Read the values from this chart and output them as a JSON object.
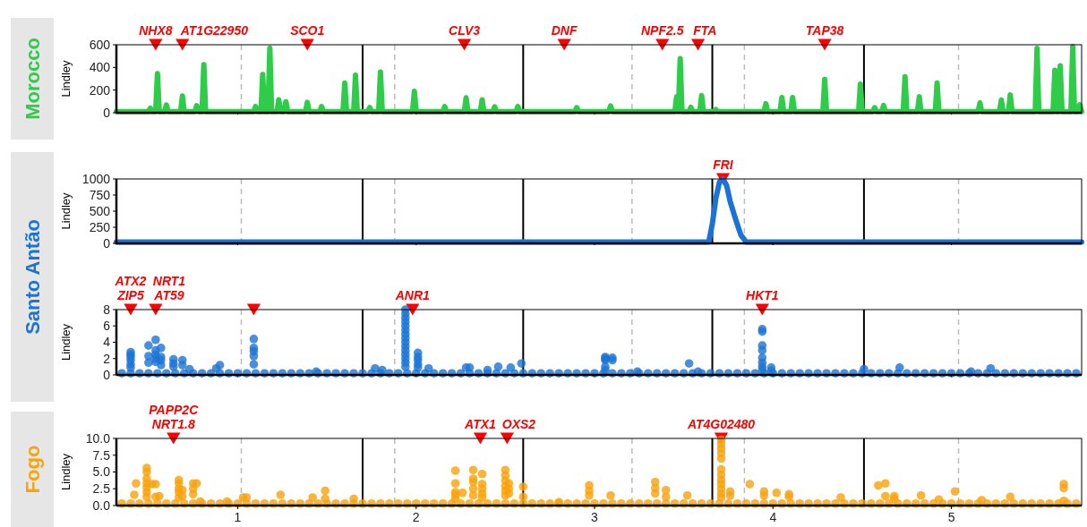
{
  "chart_data": [
    {
      "type": "line",
      "title": "Morocco",
      "ylabel": "Lindley",
      "xlim": [
        0.32,
        5.73
      ],
      "xticks": [
        1,
        2,
        3,
        4,
        5
      ],
      "ylim": [
        0,
        600
      ],
      "yticks": [
        0,
        200,
        400,
        600
      ],
      "tick_labels": "y",
      "series": [
        {
          "type": "scatter",
          "marker": "triangle",
          "color": "#ff0000",
          "x": [
            0.54,
            0.69,
            1.39,
            2.27,
            2.83,
            3.38,
            3.58,
            4.29
          ],
          "values": [
            600,
            600,
            600,
            600,
            600,
            600,
            600,
            600
          ],
          "value_labels": [
            "NHX8",
            "AT1G22950",
            "SCO1",
            "CLV3",
            "DNF",
            "NPF2.5",
            "FTA",
            "TAP38"
          ]
        },
        {
          "color": "#2ecc48",
          "x": [
            0.32,
            0.5,
            0.51,
            0.52,
            0.54,
            0.55,
            0.56,
            0.59,
            0.6,
            0.61,
            0.68,
            0.69,
            0.7,
            0.76,
            0.77,
            0.78,
            0.8,
            0.81,
            0.82,
            1.09,
            1.1,
            1.11,
            1.13,
            1.14,
            1.15,
            1.17,
            1.18,
            1.19,
            1.22,
            1.23,
            1.24,
            1.26,
            1.27,
            1.28,
            1.38,
            1.39,
            1.4,
            1.46,
            1.47,
            1.48,
            1.59,
            1.6,
            1.61,
            1.65,
            1.66,
            1.67,
            1.73,
            1.74,
            1.75,
            1.79,
            1.8,
            1.81,
            1.98,
            1.99,
            2.0,
            2.15,
            2.16,
            2.17,
            2.27,
            2.28,
            2.29,
            2.36,
            2.37,
            2.38,
            2.43,
            2.44,
            2.45,
            2.56,
            2.57,
            2.58,
            2.89,
            2.9,
            2.91,
            3.08,
            3.09,
            3.1,
            3.45,
            3.46,
            3.47,
            3.47,
            3.48,
            3.49,
            3.53,
            3.54,
            3.55,
            3.59,
            3.6,
            3.61,
            3.67,
            3.68,
            3.69,
            3.95,
            3.96,
            3.97,
            4.04,
            4.05,
            4.06,
            4.1,
            4.11,
            4.12,
            4.28,
            4.29,
            4.3,
            4.48,
            4.49,
            4.5,
            4.56,
            4.57,
            4.58,
            4.61,
            4.62,
            4.63,
            4.73,
            4.74,
            4.75,
            4.81,
            4.82,
            4.83,
            4.91,
            4.92,
            4.93,
            5.15,
            5.16,
            5.17,
            5.27,
            5.28,
            5.29,
            5.32,
            5.33,
            5.34,
            5.47,
            5.48,
            5.49,
            5.57,
            5.58,
            5.59,
            5.6,
            5.61,
            5.62,
            5.67,
            5.68,
            5.69,
            5.71,
            5.72,
            5.73
          ],
          "values": [
            10,
            10,
            40,
            10,
            10,
            345,
            10,
            10,
            68,
            10,
            10,
            148,
            10,
            10,
            62,
            10,
            10,
            425,
            10,
            10,
            55,
            10,
            10,
            338,
            10,
            10,
            570,
            10,
            10,
            114,
            10,
            10,
            98,
            10,
            10,
            92,
            10,
            10,
            55,
            10,
            10,
            262,
            10,
            10,
            332,
            10,
            10,
            46,
            10,
            10,
            360,
            10,
            10,
            190,
            10,
            10,
            55,
            10,
            10,
            132,
            10,
            10,
            114,
            10,
            10,
            52,
            10,
            10,
            55,
            10,
            10,
            45,
            10,
            10,
            61,
            10,
            10,
            141,
            10,
            10,
            478,
            10,
            10,
            48,
            10,
            10,
            151,
            10,
            10,
            29,
            10,
            10,
            80,
            10,
            10,
            135,
            10,
            10,
            135,
            10,
            10,
            295,
            10,
            10,
            253,
            10,
            10,
            45,
            10,
            10,
            64,
            10,
            10,
            318,
            10,
            10,
            141,
            10,
            10,
            263,
            10,
            10,
            87,
            10,
            10,
            112,
            10,
            10,
            157,
            10,
            10,
            568,
            10,
            10,
            375,
            10,
            10,
            414,
            10,
            10,
            584,
            10,
            10,
            70,
            10
          ]
        }
      ],
      "ref_lines": [
        {
          "axis": "x",
          "value": 1.7,
          "color": "#000000"
        },
        {
          "axis": "x",
          "value": 2.6,
          "color": "#000000"
        },
        {
          "axis": "x",
          "value": 3.66,
          "color": "#000000"
        },
        {
          "axis": "x",
          "value": 4.51,
          "color": "#000000"
        },
        {
          "axis": "x",
          "value": 1.02,
          "color": "#bbbbbb",
          "line_style": "dashed"
        },
        {
          "axis": "x",
          "value": 1.88,
          "color": "#bbbbbb",
          "line_style": "dashed"
        },
        {
          "axis": "x",
          "value": 3.21,
          "color": "#bbbbbb",
          "line_style": "dashed"
        },
        {
          "axis": "x",
          "value": 3.84,
          "color": "#bbbbbb",
          "line_style": "dashed"
        },
        {
          "axis": "x",
          "value": 5.04,
          "color": "#bbbbbb",
          "line_style": "dashed"
        }
      ],
      "grid": false
    },
    {
      "type": "line",
      "title": "Santo Antão",
      "ylabel": "Lindley",
      "xlim": [
        0.32,
        5.73
      ],
      "xticks": [
        1,
        2,
        3,
        4,
        5
      ],
      "ylim": [
        0,
        1000
      ],
      "yticks": [
        0,
        250,
        500,
        750,
        1000
      ],
      "tick_labels": "y",
      "series": [
        {
          "type": "scatter",
          "marker": "triangle",
          "color": "#ff0000",
          "x": [
            3.72
          ],
          "values": [
            1000
          ],
          "value_labels": [
            "FRI"
          ]
        },
        {
          "color": "#1a74d6",
          "x": [
            0.32,
            3.64,
            3.66,
            3.68,
            3.7,
            3.72,
            3.74,
            3.76,
            3.79,
            3.82,
            3.85,
            5.73
          ],
          "values": [
            20,
            20,
            300,
            700,
            950,
            1000,
            900,
            650,
            380,
            130,
            20,
            20
          ]
        }
      ],
      "ref_lines": [
        {
          "axis": "x",
          "value": 1.7,
          "color": "#000000"
        },
        {
          "axis": "x",
          "value": 2.6,
          "color": "#000000"
        },
        {
          "axis": "x",
          "value": 3.66,
          "color": "#000000"
        },
        {
          "axis": "x",
          "value": 4.51,
          "color": "#000000"
        },
        {
          "axis": "x",
          "value": 1.02,
          "color": "#bbbbbb",
          "line_style": "dashed"
        },
        {
          "axis": "x",
          "value": 1.88,
          "color": "#bbbbbb",
          "line_style": "dashed"
        },
        {
          "axis": "x",
          "value": 3.21,
          "color": "#bbbbbb",
          "line_style": "dashed"
        },
        {
          "axis": "x",
          "value": 3.84,
          "color": "#bbbbbb",
          "line_style": "dashed"
        },
        {
          "axis": "x",
          "value": 5.04,
          "color": "#bbbbbb",
          "line_style": "dashed"
        }
      ],
      "grid": false
    },
    {
      "type": "scatter",
      "ylabel": "Lindley",
      "xlim": [
        0.32,
        5.73
      ],
      "xticks": [
        1,
        2,
        3,
        4,
        5
      ],
      "ylim": [
        0,
        8
      ],
      "yticks": [
        0,
        2,
        4,
        6,
        8
      ],
      "tick_labels": "y",
      "marker": "circle",
      "series": [
        {
          "type": "scatter",
          "marker": "triangle",
          "color": "#ff0000",
          "x": [
            0.4,
            0.54,
            1.09,
            1.98,
            3.94
          ],
          "values": [
            8,
            8,
            8,
            8,
            8
          ],
          "value_labels": [
            "ATX2\nZIP5",
            "NRT1\nAT59",
            null,
            "ANR1",
            "HKT1"
          ]
        },
        {
          "color": "#1a74d6",
          "x": [
            0.35,
            0.4,
            0.45,
            0.5,
            0.55,
            0.6,
            0.65,
            0.7,
            0.75,
            0.8,
            0.85,
            0.9,
            0.95,
            1.0,
            1.05,
            1.1,
            1.15,
            1.2,
            1.25,
            1.3,
            1.35,
            1.4,
            1.45,
            1.5,
            1.55,
            1.6,
            1.65,
            1.7,
            1.75,
            1.8,
            1.85,
            1.9,
            1.95,
            2.0,
            2.05,
            2.1,
            2.15,
            2.2,
            2.25,
            2.3,
            2.35,
            2.4,
            2.45,
            2.5,
            2.55,
            2.6,
            2.65,
            2.7,
            2.75,
            2.8,
            2.85,
            2.9,
            2.95,
            3.0,
            3.05,
            3.1,
            3.15,
            3.2,
            3.25,
            3.3,
            3.35,
            3.4,
            3.45,
            3.5,
            3.55,
            3.6,
            3.65,
            3.7,
            3.75,
            3.8,
            3.85,
            3.9,
            3.95,
            4.0,
            4.05,
            4.1,
            4.15,
            4.2,
            4.25,
            4.3,
            4.35,
            4.4,
            4.45,
            4.5,
            4.55,
            4.6,
            4.65,
            4.7,
            4.75,
            4.8,
            4.85,
            4.9,
            4.95,
            5.0,
            5.05,
            5.1,
            5.15,
            5.2,
            5.25,
            5.3,
            5.35,
            5.4,
            5.45,
            5.5,
            5.55,
            5.6,
            5.65,
            5.7,
            0.4,
            0.4,
            0.4,
            0.4,
            0.4,
            0.4,
            0.5,
            0.5,
            0.5,
            0.54,
            0.54,
            0.54,
            0.54,
            0.54,
            0.57,
            0.57,
            0.57,
            0.57,
            0.64,
            0.64,
            0.64,
            0.69,
            0.69,
            0.73,
            0.88,
            0.9,
            1.09,
            1.09,
            1.09,
            1.09,
            1.09,
            1.44,
            1.77,
            1.81,
            1.94,
            1.94,
            1.94,
            1.94,
            1.94,
            1.94,
            1.94,
            1.94,
            1.94,
            1.94,
            1.94,
            1.94,
            1.94,
            1.94,
            1.94,
            2.01,
            2.01,
            2.01,
            2.01,
            2.01,
            2.07,
            2.28,
            2.3,
            2.4,
            2.46,
            2.53,
            2.59,
            3.06,
            3.06,
            3.06,
            3.06,
            3.06,
            3.1,
            3.1,
            3.24,
            3.53,
            3.58,
            3.94,
            3.94,
            3.94,
            3.94,
            3.94,
            3.94,
            3.94,
            3.94,
            3.99,
            3.99,
            4.51,
            4.71,
            5.11,
            5.22
          ],
          "values": [
            0.2,
            0.2,
            0.2,
            0.2,
            0.2,
            0.2,
            0.2,
            0.2,
            0.2,
            0.2,
            0.2,
            0.2,
            0.2,
            0.2,
            0.2,
            0.2,
            0.2,
            0.2,
            0.2,
            0.2,
            0.2,
            0.2,
            0.2,
            0.2,
            0.2,
            0.2,
            0.2,
            0.2,
            0.2,
            0.2,
            0.2,
            0.2,
            0.2,
            0.2,
            0.2,
            0.2,
            0.2,
            0.2,
            0.2,
            0.2,
            0.2,
            0.2,
            0.2,
            0.2,
            0.2,
            0.2,
            0.2,
            0.2,
            0.2,
            0.2,
            0.2,
            0.2,
            0.2,
            0.2,
            0.2,
            0.2,
            0.2,
            0.2,
            0.2,
            0.2,
            0.2,
            0.2,
            0.2,
            0.2,
            0.2,
            0.2,
            0.2,
            0.2,
            0.2,
            0.2,
            0.2,
            0.2,
            0.2,
            0.2,
            0.2,
            0.2,
            0.2,
            0.2,
            0.2,
            0.2,
            0.2,
            0.2,
            0.2,
            0.2,
            0.2,
            0.2,
            0.2,
            0.2,
            0.2,
            0.2,
            0.2,
            0.2,
            0.2,
            0.2,
            0.2,
            0.2,
            0.2,
            0.2,
            0.2,
            0.2,
            0.2,
            0.2,
            0.2,
            0.2,
            0.2,
            0.2,
            0.2,
            0.2,
            2.8,
            2.5,
            2.2,
            1.8,
            1.3,
            0.9,
            3.6,
            2.3,
            1.5,
            4.3,
            3.0,
            2.5,
            2.0,
            1.6,
            3.3,
            2.2,
            1.8,
            1.2,
            1.9,
            1.4,
            1.0,
            1.8,
            1.2,
            0.7,
            0.8,
            1.2,
            4.4,
            3.3,
            2.9,
            2.3,
            1.3,
            0.4,
            0.8,
            0.6,
            8.0,
            7.5,
            7.0,
            6.5,
            6.0,
            5.5,
            5.0,
            4.5,
            4.0,
            3.5,
            3.0,
            2.5,
            2.0,
            1.5,
            1.0,
            2.7,
            2.2,
            1.8,
            1.3,
            0.9,
            0.8,
            0.9,
            0.9,
            0.6,
            1.0,
            0.9,
            1.4,
            2.2,
            2.0,
            1.8,
            1.0,
            0.6,
            2.1,
            1.8,
            0.4,
            1.4,
            0.4,
            5.6,
            5.3,
            3.6,
            3.0,
            2.1,
            1.5,
            1.0,
            0.6,
            0.9,
            0.5,
            0.7,
            0.9,
            0.4,
            0.8
          ]
        }
      ],
      "ref_lines": [
        {
          "axis": "x",
          "value": 1.7,
          "color": "#000000"
        },
        {
          "axis": "x",
          "value": 2.6,
          "color": "#000000"
        },
        {
          "axis": "x",
          "value": 3.66,
          "color": "#000000"
        },
        {
          "axis": "x",
          "value": 4.51,
          "color": "#000000"
        },
        {
          "axis": "x",
          "value": 1.02,
          "color": "#bbbbbb",
          "line_style": "dashed"
        },
        {
          "axis": "x",
          "value": 1.88,
          "color": "#bbbbbb",
          "line_style": "dashed"
        },
        {
          "axis": "x",
          "value": 3.21,
          "color": "#bbbbbb",
          "line_style": "dashed"
        },
        {
          "axis": "x",
          "value": 3.84,
          "color": "#bbbbbb",
          "line_style": "dashed"
        },
        {
          "axis": "x",
          "value": 5.04,
          "color": "#bbbbbb",
          "line_style": "dashed"
        }
      ],
      "grid": false
    },
    {
      "type": "scatter",
      "title": "Fogo",
      "ylabel": "Lindley",
      "xlim": [
        0.32,
        5.73
      ],
      "ylim": [
        0,
        10
      ],
      "yticks": [
        {
          "value": 0,
          "label": "0.0"
        },
        {
          "value": 2.5,
          "label": "2.5"
        },
        {
          "value": 5,
          "label": "5.0"
        },
        {
          "value": 7.5,
          "label": "7.5"
        },
        {
          "value": 10,
          "label": "10.0"
        }
      ],
      "xticks": [
        1,
        2,
        3,
        4,
        5
      ],
      "marker": "circle",
      "series": [
        {
          "type": "scatter",
          "marker": "triangle",
          "color": "#ff0000",
          "x": [
            0.64,
            2.36,
            2.51,
            3.71
          ],
          "values": [
            10,
            10,
            10,
            10
          ],
          "value_labels": [
            "PAPP2C\nNRT1.8",
            "ATX1",
            "OXS2",
            "AT4G02480"
          ]
        },
        {
          "color": "#f7a30a",
          "x": [
            0.35,
            0.4,
            0.45,
            0.5,
            0.55,
            0.6,
            0.65,
            0.7,
            0.75,
            0.8,
            0.85,
            0.9,
            0.95,
            1.0,
            1.05,
            1.1,
            1.15,
            1.2,
            1.25,
            1.3,
            1.35,
            1.4,
            1.45,
            1.5,
            1.55,
            1.6,
            1.65,
            1.7,
            1.75,
            1.8,
            1.85,
            1.9,
            1.95,
            2.0,
            2.05,
            2.1,
            2.15,
            2.2,
            2.25,
            2.3,
            2.35,
            2.4,
            2.45,
            2.5,
            2.55,
            2.6,
            2.65,
            2.7,
            2.75,
            2.8,
            2.85,
            2.9,
            2.95,
            3.0,
            3.05,
            3.1,
            3.15,
            3.2,
            3.25,
            3.3,
            3.35,
            3.4,
            3.45,
            3.5,
            3.55,
            3.6,
            3.65,
            3.7,
            3.75,
            3.8,
            3.85,
            3.9,
            3.95,
            4.0,
            4.05,
            4.1,
            4.15,
            4.2,
            4.25,
            4.3,
            4.35,
            4.4,
            4.45,
            4.5,
            4.55,
            4.6,
            4.65,
            4.7,
            4.75,
            4.8,
            4.85,
            4.9,
            4.95,
            5.0,
            5.05,
            5.1,
            5.15,
            5.2,
            5.25,
            5.3,
            5.35,
            5.4,
            5.45,
            5.5,
            5.55,
            5.6,
            5.65,
            5.7,
            0.42,
            0.43,
            0.49,
            0.49,
            0.49,
            0.49,
            0.49,
            0.49,
            0.49,
            0.52,
            0.54,
            0.54,
            0.56,
            0.67,
            0.67,
            0.67,
            0.67,
            0.67,
            0.69,
            0.69,
            0.75,
            0.75,
            0.75,
            0.77,
            0.79,
            0.94,
            1.03,
            1.05,
            1.24,
            1.42,
            1.49,
            1.49,
            1.65,
            2.22,
            2.22,
            2.22,
            2.22,
            2.22,
            2.26,
            2.32,
            2.32,
            2.32,
            2.32,
            2.32,
            2.37,
            2.37,
            2.37,
            2.37,
            2.37,
            2.5,
            2.5,
            2.5,
            2.5,
            2.5,
            2.5,
            2.52,
            2.52,
            2.52,
            2.6,
            2.6,
            2.8,
            2.97,
            2.97,
            2.97,
            3.09,
            3.34,
            3.34,
            3.34,
            3.4,
            3.4,
            3.52,
            3.71,
            3.71,
            3.71,
            3.71,
            3.71,
            3.71,
            3.71,
            3.71,
            3.71,
            3.71,
            3.71,
            3.71,
            3.76,
            3.76,
            3.87,
            3.95,
            3.95,
            4.02,
            4.09,
            4.09,
            4.38,
            4.59,
            4.63,
            4.63,
            4.68,
            4.68,
            4.83,
            4.93,
            5.02,
            5.17,
            5.33,
            5.63,
            5.63,
            5.63
          ],
          "values": [
            0.3,
            0.3,
            0.3,
            0.3,
            0.3,
            0.3,
            0.3,
            0.3,
            0.3,
            0.3,
            0.3,
            0.3,
            0.3,
            0.3,
            0.3,
            0.3,
            0.3,
            0.3,
            0.3,
            0.3,
            0.3,
            0.3,
            0.3,
            0.3,
            0.3,
            0.3,
            0.3,
            0.3,
            0.3,
            0.3,
            0.3,
            0.3,
            0.3,
            0.3,
            0.3,
            0.3,
            0.3,
            0.3,
            0.3,
            0.3,
            0.3,
            0.3,
            0.3,
            0.3,
            0.3,
            0.3,
            0.3,
            0.3,
            0.3,
            0.3,
            0.3,
            0.3,
            0.3,
            0.3,
            0.3,
            0.3,
            0.3,
            0.3,
            0.3,
            0.3,
            0.3,
            0.3,
            0.3,
            0.3,
            0.3,
            0.3,
            0.3,
            0.3,
            0.3,
            0.3,
            0.3,
            0.3,
            0.3,
            0.3,
            0.3,
            0.3,
            0.3,
            0.3,
            0.3,
            0.3,
            0.3,
            0.3,
            0.3,
            0.3,
            0.3,
            0.3,
            0.3,
            0.3,
            0.3,
            0.3,
            0.3,
            0.3,
            0.3,
            0.3,
            0.3,
            0.3,
            0.3,
            0.3,
            0.3,
            0.3,
            0.3,
            0.3,
            0.3,
            0.3,
            0.3,
            0.3,
            0.3,
            0.3,
            1.6,
            3.3,
            5.6,
            5.0,
            4.0,
            3.3,
            2.7,
            2.0,
            1.3,
            3.2,
            3.2,
            1.3,
            1.4,
            3.8,
            3.3,
            2.5,
            2.0,
            1.2,
            2.3,
            1.4,
            3.3,
            2.5,
            1.7,
            3.3,
            0.6,
            0.6,
            1.2,
            1.2,
            1.6,
            1.2,
            2.2,
            1.0,
            1.0,
            5.2,
            3.3,
            2.0,
            1.6,
            1.0,
            1.9,
            5.3,
            4.0,
            3.5,
            2.5,
            1.5,
            4.7,
            3.2,
            2.5,
            1.8,
            1.2,
            5.3,
            4.5,
            3.7,
            2.9,
            2.2,
            1.5,
            3.3,
            2.5,
            1.8,
            2.8,
            1.3,
            0.5,
            3.0,
            2.2,
            1.5,
            1.5,
            3.5,
            2.6,
            1.8,
            2.3,
            1.3,
            1.5,
            9.8,
            9.2,
            8.5,
            7.8,
            7.0,
            5.4,
            4.6,
            3.8,
            3.2,
            2.5,
            1.8,
            1.2,
            2.1,
            1.5,
            3.2,
            2.1,
            1.5,
            1.9,
            1.7,
            1.3,
            1.2,
            3.0,
            3.3,
            1.4,
            1.4,
            1.0,
            1.5,
            0.9,
            2.1,
            0.8,
            1.3,
            3.2,
            2.6,
            0.7
          ]
        }
      ],
      "ref_lines": [
        {
          "axis": "x",
          "value": 1.7,
          "color": "#000000"
        },
        {
          "axis": "x",
          "value": 2.6,
          "color": "#000000"
        },
        {
          "axis": "x",
          "value": 3.66,
          "color": "#000000"
        },
        {
          "axis": "x",
          "value": 4.51,
          "color": "#000000"
        },
        {
          "axis": "x",
          "value": 1.02,
          "color": "#bbbbbb",
          "line_style": "dashed"
        },
        {
          "axis": "x",
          "value": 1.88,
          "color": "#bbbbbb",
          "line_style": "dashed"
        },
        {
          "axis": "x",
          "value": 3.21,
          "color": "#bbbbbb",
          "line_style": "dashed"
        },
        {
          "axis": "x",
          "value": 3.84,
          "color": "#bbbbbb",
          "line_style": "dashed"
        },
        {
          "axis": "x",
          "value": 5.04,
          "color": "#bbbbbb",
          "line_style": "dashed"
        }
      ],
      "grid": false
    }
  ]
}
